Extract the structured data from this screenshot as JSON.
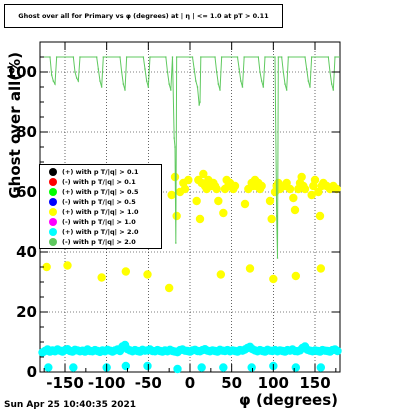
{
  "title": "Ghost over all for Primary vs φ (degrees) at | η | <= 1.0 at pT > 0.11",
  "footer": "Sun Apr 25 10:40:35 2021",
  "legend": [
    {
      "label": "(+) with p T/|q| > 0.1",
      "color": "#000000"
    },
    {
      "label": "(-) with p T/|q| > 0.1",
      "color": "#ff0000"
    },
    {
      "label": "(+) with p T/|q| > 0.5",
      "color": "#00ff00"
    },
    {
      "label": "(-) with p T/|q| > 0.5",
      "color": "#0000ff"
    },
    {
      "label": "(+) with p T/|q| > 1.0",
      "color": "#ffff00"
    },
    {
      "label": "(-) with p T/|q| > 1.0",
      "color": "#ff00ff"
    },
    {
      "label": "(+) with p T/|q| > 2.0",
      "color": "#00ffff"
    },
    {
      "label": "(-) with p T/|q| > 2.0",
      "color": "#5fc95f"
    }
  ],
  "chart_data": {
    "type": "scatter",
    "title": "Ghost over all for Primary vs φ (degrees) at | η | <= 1.0 at pT > 0.11",
    "xlabel": "φ (degrees)",
    "ylabel": "Ghost over all(%)",
    "xlim": [
      -180,
      180
    ],
    "ylim": [
      0,
      110
    ],
    "x_ticks": [
      -150,
      -100,
      -50,
      0,
      50,
      100,
      150
    ],
    "y_ticks": [
      0,
      20,
      40,
      60,
      80,
      100
    ],
    "grid": true,
    "legend_position": "left",
    "series": [
      {
        "name": "(+) with p T/|q| > 1.0",
        "color": "#ffff00",
        "points": [
          [
            -172,
            35
          ],
          [
            -147,
            35.5
          ],
          [
            -106,
            31.5
          ],
          [
            -77,
            33.5
          ],
          [
            -51,
            32.5
          ],
          [
            -25,
            28
          ],
          [
            -22,
            59
          ],
          [
            -18,
            65
          ],
          [
            -16,
            52
          ],
          [
            -12,
            60
          ],
          [
            -8,
            63
          ],
          [
            -6,
            61
          ],
          [
            -2,
            64
          ],
          [
            8,
            57
          ],
          [
            10,
            64
          ],
          [
            12,
            51
          ],
          [
            14,
            63
          ],
          [
            16,
            66
          ],
          [
            18,
            62
          ],
          [
            20,
            61
          ],
          [
            22,
            64
          ],
          [
            24,
            63
          ],
          [
            26,
            62
          ],
          [
            28,
            63
          ],
          [
            30,
            62
          ],
          [
            32,
            61
          ],
          [
            34,
            57
          ],
          [
            37,
            32.5
          ],
          [
            40,
            53
          ],
          [
            42,
            61
          ],
          [
            44,
            64
          ],
          [
            46,
            62
          ],
          [
            48,
            63
          ],
          [
            50,
            62
          ],
          [
            52,
            61
          ],
          [
            54,
            62
          ],
          [
            66,
            56
          ],
          [
            70,
            61
          ],
          [
            72,
            34.5
          ],
          [
            74,
            63
          ],
          [
            76,
            62
          ],
          [
            78,
            64
          ],
          [
            80,
            62
          ],
          [
            82,
            63
          ],
          [
            84,
            61
          ],
          [
            86,
            62
          ],
          [
            96,
            57
          ],
          [
            98,
            51
          ],
          [
            100,
            31
          ],
          [
            102,
            60
          ],
          [
            104,
            62
          ],
          [
            106,
            63
          ],
          [
            108,
            61
          ],
          [
            114,
            62
          ],
          [
            116,
            63
          ],
          [
            120,
            61
          ],
          [
            124,
            58
          ],
          [
            126,
            54
          ],
          [
            127,
            32
          ],
          [
            130,
            61
          ],
          [
            132,
            63
          ],
          [
            134,
            65
          ],
          [
            136,
            62
          ],
          [
            138,
            61
          ],
          [
            146,
            59
          ],
          [
            148,
            62
          ],
          [
            150,
            64
          ],
          [
            154,
            60
          ],
          [
            156,
            52
          ],
          [
            157,
            34.5
          ],
          [
            158,
            62
          ],
          [
            160,
            63
          ],
          [
            164,
            62
          ],
          [
            168,
            61
          ],
          [
            172,
            62
          ],
          [
            176,
            61
          ]
        ]
      },
      {
        "name": "(+) with p T/|q| > 2.0",
        "color": "#00ffff",
        "points": [
          [
            -177,
            6.5
          ],
          [
            -174,
            7
          ],
          [
            -171,
            7.5
          ],
          [
            -168,
            6.8
          ],
          [
            -165,
            7.2
          ],
          [
            -162,
            6.9
          ],
          [
            -159,
            7.5
          ],
          [
            -156,
            7.1
          ],
          [
            -153,
            6.8
          ],
          [
            -150,
            7.3
          ],
          [
            -147,
            7.6
          ],
          [
            -144,
            7
          ],
          [
            -141,
            6.8
          ],
          [
            -138,
            7.4
          ],
          [
            -135,
            7.2
          ],
          [
            -132,
            6.9
          ],
          [
            -129,
            7.1
          ],
          [
            -126,
            6.8
          ],
          [
            -123,
            7.5
          ],
          [
            -120,
            7
          ],
          [
            -117,
            6.9
          ],
          [
            -114,
            7.3
          ],
          [
            -111,
            7
          ],
          [
            -108,
            6.7
          ],
          [
            -105,
            7.2
          ],
          [
            -102,
            6.9
          ],
          [
            -99,
            7.4
          ],
          [
            -96,
            7.1
          ],
          [
            -93,
            6.8
          ],
          [
            -90,
            7.2
          ],
          [
            -87,
            7.5
          ],
          [
            -84,
            7
          ],
          [
            -81,
            8.5
          ],
          [
            -78,
            9
          ],
          [
            -75,
            7.6
          ],
          [
            -72,
            7.2
          ],
          [
            -69,
            6.9
          ],
          [
            -66,
            7.3
          ],
          [
            -63,
            7
          ],
          [
            -60,
            6.8
          ],
          [
            -57,
            7.4
          ],
          [
            -54,
            7.1
          ],
          [
            -51,
            7.2
          ],
          [
            -48,
            7.5
          ],
          [
            -45,
            7
          ],
          [
            -42,
            6.9
          ],
          [
            -39,
            7.3
          ],
          [
            -36,
            7
          ],
          [
            -33,
            6.8
          ],
          [
            -30,
            7.2
          ],
          [
            -27,
            6.9
          ],
          [
            -24,
            7.4
          ],
          [
            -21,
            7
          ],
          [
            -18,
            6.8
          ],
          [
            -15,
            6.6
          ],
          [
            -12,
            7.3
          ],
          [
            -9,
            7.5
          ],
          [
            -6,
            7.1
          ],
          [
            -3,
            7
          ],
          [
            0,
            6.8
          ],
          [
            3,
            7.2
          ],
          [
            6,
            7.4
          ],
          [
            9,
            7
          ],
          [
            12,
            6.9
          ],
          [
            15,
            7.3
          ],
          [
            18,
            7.6
          ],
          [
            21,
            7.1
          ],
          [
            24,
            6.9
          ],
          [
            27,
            7.2
          ],
          [
            30,
            7
          ],
          [
            33,
            6.8
          ],
          [
            36,
            7.4
          ],
          [
            39,
            7.1
          ],
          [
            42,
            7
          ],
          [
            45,
            7.3
          ],
          [
            48,
            6.9
          ],
          [
            51,
            7.2
          ],
          [
            54,
            7
          ],
          [
            57,
            6.8
          ],
          [
            60,
            7.3
          ],
          [
            63,
            7.1
          ],
          [
            66,
            7.5
          ],
          [
            69,
            8
          ],
          [
            72,
            8.4
          ],
          [
            75,
            7.6
          ],
          [
            78,
            7.2
          ],
          [
            81,
            6.9
          ],
          [
            84,
            7.3
          ],
          [
            87,
            7
          ],
          [
            90,
            6.8
          ],
          [
            93,
            7.4
          ],
          [
            96,
            7.1
          ],
          [
            99,
            7
          ],
          [
            102,
            7.3
          ],
          [
            105,
            6.9
          ],
          [
            108,
            7.2
          ],
          [
            111,
            7
          ],
          [
            114,
            6.8
          ],
          [
            117,
            7.3
          ],
          [
            120,
            7.1
          ],
          [
            123,
            7.5
          ],
          [
            126,
            7
          ],
          [
            129,
            6.9
          ],
          [
            132,
            7.2
          ],
          [
            135,
            8
          ],
          [
            138,
            8.5
          ],
          [
            141,
            7.4
          ],
          [
            144,
            7.1
          ],
          [
            147,
            6.9
          ],
          [
            150,
            7.2
          ],
          [
            153,
            7
          ],
          [
            156,
            6.8
          ],
          [
            159,
            7.3
          ],
          [
            162,
            7.1
          ],
          [
            165,
            7
          ],
          [
            168,
            6.8
          ],
          [
            171,
            7.3
          ],
          [
            174,
            7.5
          ],
          [
            177,
            7
          ],
          [
            -170,
            1.5
          ],
          [
            -140,
            1.5
          ],
          [
            -100,
            1.5
          ],
          [
            -77,
            2
          ],
          [
            -51,
            2
          ],
          [
            -15,
            1
          ],
          [
            14,
            1.5
          ],
          [
            40,
            1.5
          ],
          [
            74,
            1.5
          ],
          [
            100,
            2
          ],
          [
            127,
            1.5
          ],
          [
            157,
            1.5
          ]
        ]
      },
      {
        "name": "(-) with p T/|q| > 2.0",
        "color": "#5fc95f",
        "baseline": 105,
        "points": [
          [
            -168,
            105
          ],
          [
            -166,
            99
          ],
          [
            -164,
            97
          ],
          [
            -162,
            96
          ],
          [
            -160,
            105
          ],
          [
            -140,
            105
          ],
          [
            -138,
            100
          ],
          [
            -136,
            98
          ],
          [
            -134,
            97
          ],
          [
            -132,
            105
          ],
          [
            -112,
            105
          ],
          [
            -110,
            101
          ],
          [
            -108,
            97
          ],
          [
            -106,
            95
          ],
          [
            -104,
            105
          ],
          [
            -84,
            105
          ],
          [
            -82,
            100
          ],
          [
            -80,
            96
          ],
          [
            -78,
            94
          ],
          [
            -76,
            105
          ],
          [
            -56,
            105
          ],
          [
            -54,
            101
          ],
          [
            -52,
            97
          ],
          [
            -50,
            95
          ],
          [
            -48,
            105
          ],
          [
            -29,
            105
          ],
          [
            -27,
            100
          ],
          [
            -25,
            96
          ],
          [
            -23,
            94
          ],
          [
            -21,
            105
          ],
          [
            -19,
            78
          ],
          [
            -18,
            75
          ],
          [
            -17,
            43
          ],
          [
            -16,
            105
          ],
          [
            3,
            105
          ],
          [
            5,
            101
          ],
          [
            7,
            97
          ],
          [
            9,
            95
          ],
          [
            11,
            89
          ],
          [
            12,
            90
          ],
          [
            13,
            105
          ],
          [
            30,
            105
          ],
          [
            32,
            100
          ],
          [
            34,
            96
          ],
          [
            36,
            94
          ],
          [
            38,
            105
          ],
          [
            57,
            105
          ],
          [
            59,
            101
          ],
          [
            61,
            97
          ],
          [
            63,
            95
          ],
          [
            65,
            105
          ],
          [
            82,
            105
          ],
          [
            84,
            100
          ],
          [
            86,
            97
          ],
          [
            88,
            95
          ],
          [
            90,
            105
          ],
          [
            102,
            105
          ],
          [
            104,
            52
          ],
          [
            105,
            38
          ],
          [
            106,
            105
          ],
          [
            110,
            105
          ],
          [
            112,
            100
          ],
          [
            114,
            96
          ],
          [
            116,
            94
          ],
          [
            118,
            105
          ],
          [
            138,
            105
          ],
          [
            140,
            101
          ],
          [
            142,
            97
          ],
          [
            144,
            95
          ],
          [
            146,
            105
          ],
          [
            166,
            105
          ],
          [
            168,
            100
          ],
          [
            170,
            96
          ],
          [
            172,
            94
          ],
          [
            174,
            105
          ]
        ]
      }
    ]
  }
}
